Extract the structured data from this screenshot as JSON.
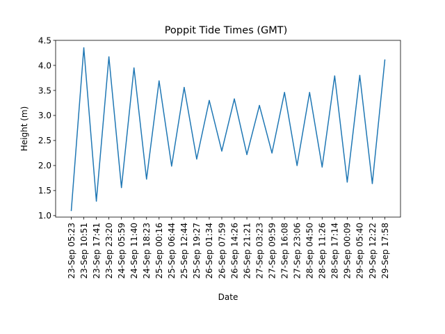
{
  "chart_data": {
    "type": "line",
    "title": "Poppit Tide Times (GMT)",
    "xlabel": "Date",
    "ylabel": "Height (m)",
    "ylim": [
      0.97,
      4.5
    ],
    "yticks": [
      "1.0",
      "1.5",
      "2.0",
      "2.5",
      "3.0",
      "3.5",
      "4.0",
      "4.5"
    ],
    "grid": false,
    "categories": [
      "23-Sep 05:23",
      "23-Sep 10:51",
      "23-Sep 17:41",
      "23-Sep 23:20",
      "24-Sep 05:59",
      "24-Sep 11:40",
      "24-Sep 18:23",
      "25-Sep 00:16",
      "25-Sep 06:44",
      "25-Sep 12:44",
      "25-Sep 19:27",
      "26-Sep 01:34",
      "26-Sep 07:59",
      "26-Sep 14:26",
      "26-Sep 21:21",
      "27-Sep 03:23",
      "27-Sep 09:59",
      "27-Sep 16:08",
      "27-Sep 23:06",
      "28-Sep 04:50",
      "28-Sep 11:26",
      "28-Sep 17:14",
      "29-Sep 00:09",
      "29-Sep 05:40",
      "29-Sep 12:22",
      "29-Sep 17:58"
    ],
    "series": [
      {
        "color": "#1f77b4",
        "values": [
          1.1,
          4.35,
          1.29,
          4.17,
          1.56,
          3.95,
          1.73,
          3.69,
          1.99,
          3.56,
          2.13,
          3.3,
          2.29,
          3.33,
          2.22,
          3.2,
          2.25,
          3.46,
          2.0,
          3.46,
          1.97,
          3.79,
          1.67,
          3.8,
          1.64,
          4.11
        ]
      }
    ]
  }
}
